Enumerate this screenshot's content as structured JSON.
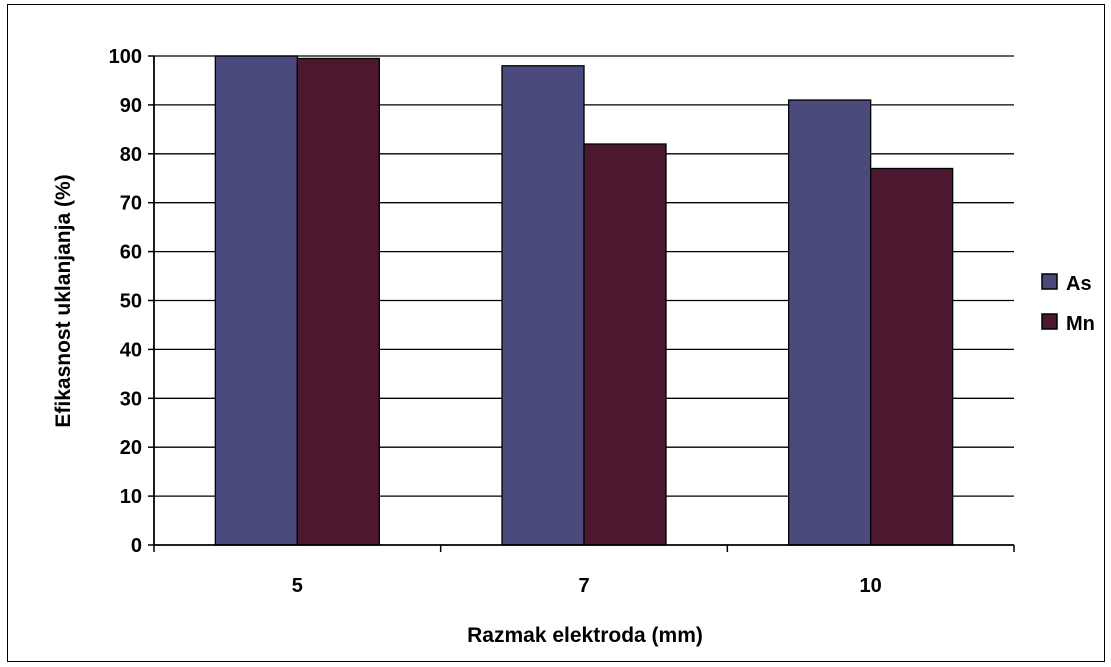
{
  "chart_data": {
    "type": "bar",
    "categories": [
      "5",
      "7",
      "10"
    ],
    "series": [
      {
        "name": "As",
        "values": [
          100,
          98,
          91
        ],
        "color": "#4A4A7C"
      },
      {
        "name": "Mn",
        "values": [
          99.5,
          82,
          77
        ],
        "color": "#4C1830"
      }
    ],
    "xlabel": "Razmak elektroda (mm)",
    "ylabel": "Efikasnost uklanjanja (%)",
    "ylim": [
      0,
      100
    ],
    "yticks": [
      0,
      10,
      20,
      30,
      40,
      50,
      60,
      70,
      80,
      90,
      100
    ],
    "grid": true,
    "legend": "right"
  }
}
